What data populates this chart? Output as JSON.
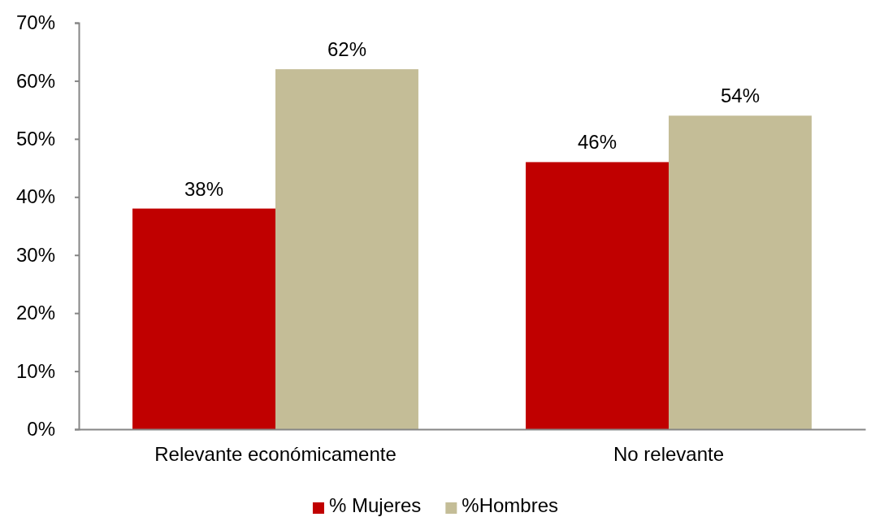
{
  "chart_data": {
    "type": "bar",
    "categories": [
      "Relevante económicamente",
      "No relevante"
    ],
    "series": [
      {
        "name": "% Mujeres",
        "color": "#c00000",
        "values": [
          38,
          46
        ],
        "value_labels": [
          "38%",
          "46%"
        ]
      },
      {
        "name": "%Hombres",
        "color": "#c4bd97",
        "values": [
          62,
          54
        ],
        "value_labels": [
          "62%",
          "54%"
        ]
      }
    ],
    "ylim": [
      0,
      70
    ],
    "yticks": [
      {
        "value": 0,
        "label": "0%"
      },
      {
        "value": 10,
        "label": "10%"
      },
      {
        "value": 20,
        "label": "20%"
      },
      {
        "value": 30,
        "label": "30%"
      },
      {
        "value": 40,
        "label": "40%"
      },
      {
        "value": 50,
        "label": "50%"
      },
      {
        "value": 60,
        "label": "60%"
      },
      {
        "value": 70,
        "label": "70%"
      }
    ],
    "grid": false,
    "legend": "bottom"
  }
}
